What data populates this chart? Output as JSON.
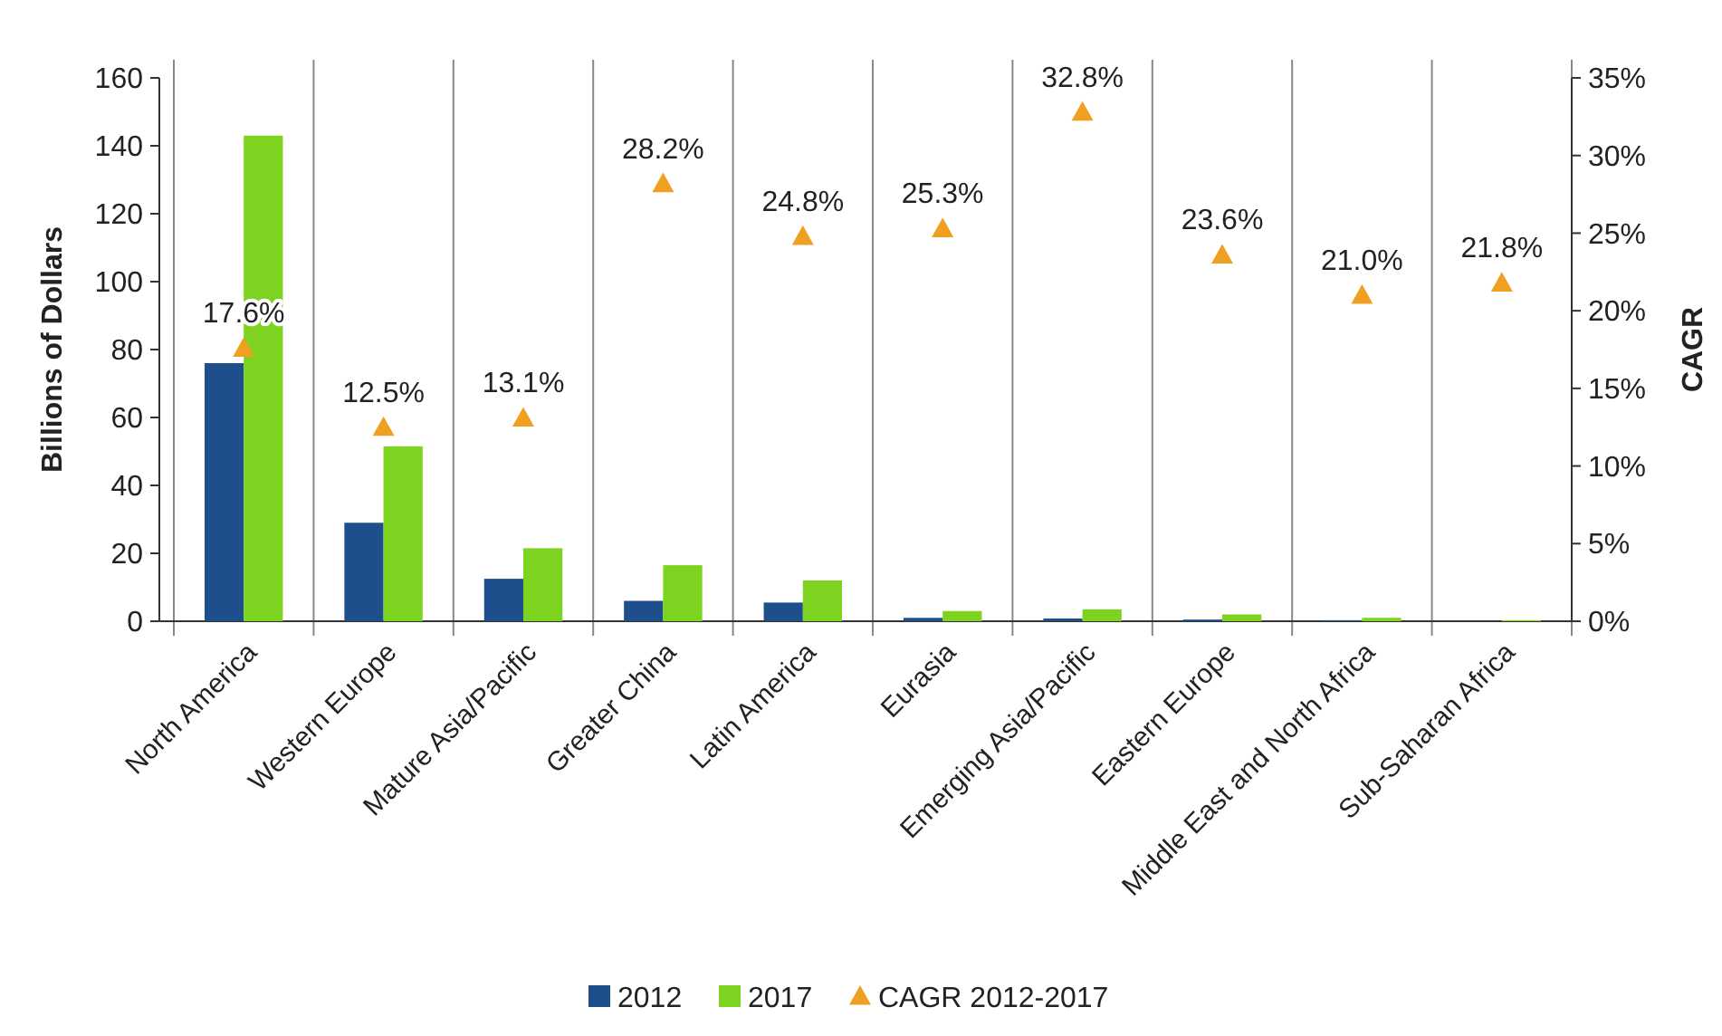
{
  "chart_data": {
    "type": "bar",
    "ylabel": "Billions of Dollars",
    "y2label": "CAGR",
    "categories": [
      "North America",
      "Western Europe",
      "Mature Asia/Pacific",
      "Greater China",
      "Latin America",
      "Eurasia",
      "Emerging Asia/Pacific",
      "Eastern Europe",
      "Middle East and North Africa",
      "Sub-Saharan Africa"
    ],
    "series": [
      {
        "name": "2012",
        "color": "#1f4e8c",
        "values": [
          76,
          29,
          12.5,
          6,
          5.5,
          1,
          0.8,
          0.5,
          0.3,
          null
        ]
      },
      {
        "name": "2017",
        "color": "#7ed321",
        "values": [
          143,
          51.5,
          21.5,
          16.5,
          12,
          3,
          3.5,
          2,
          1,
          0.3
        ]
      },
      {
        "name": "CAGR 2012-2017",
        "type": "scatter",
        "axis": "y2",
        "color": "#f0a020",
        "marker": "triangle",
        "values": [
          17.6,
          12.5,
          13.1,
          28.2,
          24.8,
          25.3,
          32.8,
          23.6,
          21.0,
          21.8
        ],
        "value_labels": [
          "17.6%",
          "12.5%",
          "13.1%",
          "28.2%",
          "24.8%",
          "25.3%",
          "32.8%",
          "23.6%",
          "21.0%",
          "21.8%"
        ]
      }
    ],
    "ylim": [
      0,
      160
    ],
    "yticks": [
      0,
      20,
      40,
      60,
      80,
      100,
      120,
      140,
      160
    ],
    "y2lim": [
      0,
      35
    ],
    "y2ticks": [
      {
        "value": 0,
        "label": "0%"
      },
      {
        "value": 5,
        "label": "5%"
      },
      {
        "value": 10,
        "label": "10%"
      },
      {
        "value": 15,
        "label": "15%"
      },
      {
        "value": 20,
        "label": "20%"
      },
      {
        "value": 25,
        "label": "25%"
      },
      {
        "value": 30,
        "label": "30%"
      },
      {
        "value": 35,
        "label": "35%"
      }
    ],
    "grid": "x",
    "legend": "bottom"
  }
}
